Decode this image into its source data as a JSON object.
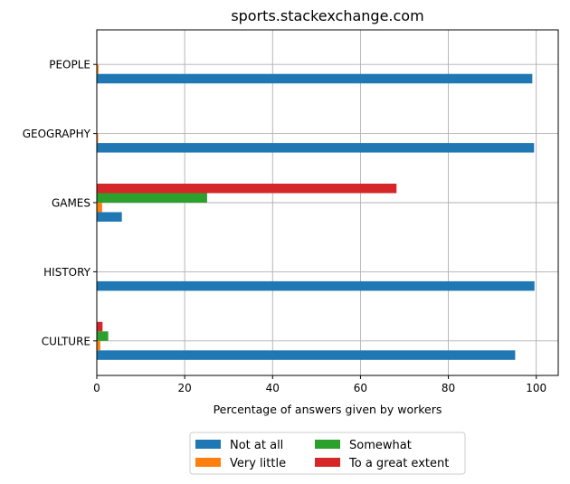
{
  "chart_data": {
    "type": "bar",
    "orientation": "horizontal",
    "title": "sports.stackexchange.com",
    "xlabel": "Percentage of answers given by workers",
    "ylabel": "",
    "xlim": [
      0,
      105
    ],
    "x_ticks": [
      0,
      20,
      40,
      60,
      80,
      100
    ],
    "categories": [
      "CULTURE",
      "HISTORY",
      "GAMES",
      "GEOGRAPHY",
      "PEOPLE"
    ],
    "series": [
      {
        "name": "Not at all",
        "color": "#1f77b4",
        "values": [
          95.2,
          99.6,
          5.7,
          99.5,
          99.1
        ]
      },
      {
        "name": "Very little",
        "color": "#ff7f0e",
        "values": [
          0.8,
          0.0,
          1.2,
          0.3,
          0.4
        ]
      },
      {
        "name": "Somewhat",
        "color": "#2ca02c",
        "values": [
          2.6,
          0.0,
          25.1,
          0.0,
          0.0
        ]
      },
      {
        "name": "To a great extent",
        "color": "#d62728",
        "values": [
          1.3,
          0.0,
          68.2,
          0.0,
          0.0
        ]
      }
    ],
    "grid": true,
    "legend_position": "bottom-center"
  }
}
